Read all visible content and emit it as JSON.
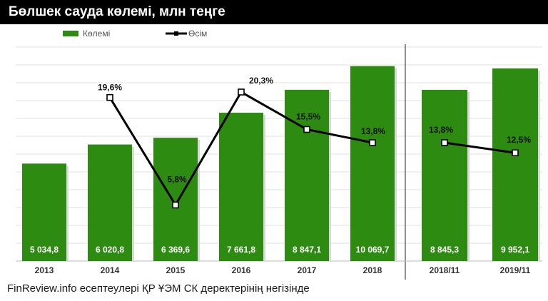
{
  "header": {
    "title": "Бөлшек сауда көлемі, млн теңге"
  },
  "footer": {
    "source": "FinReview.info есептеулері ҚР ҰЭМ СК деректерінің негізінде"
  },
  "colors": {
    "bar": "#2e8b12",
    "line": "#000000",
    "marker_fill": "#ffffff",
    "title_bg": "#000000"
  },
  "chart_data": [
    {
      "type": "bar",
      "title": "Бөлшек сауда көлемі, млн теңге",
      "legend": {
        "position": "top-left",
        "entries": [
          "Көлемі",
          "Өсім"
        ]
      },
      "grid": true,
      "categories": [
        "2013",
        "2014",
        "2015",
        "2016",
        "2017",
        "2018"
      ],
      "series": [
        {
          "name": "Көлемі",
          "type": "bar",
          "values": [
            5034.8,
            6020.8,
            6369.6,
            7661.8,
            8847.1,
            10069.7
          ],
          "labels": [
            "5 034,8",
            "6 020,8",
            "6 369,6",
            "7 661,8",
            "8 847,1",
            "10 069,7"
          ]
        },
        {
          "name": "Өсім",
          "type": "line",
          "values": [
            null,
            19.6,
            5.8,
            20.3,
            15.5,
            13.8
          ],
          "labels": [
            "",
            "19,6%",
            "5,8%",
            "20,3%",
            "15,5%",
            "13,8%"
          ]
        }
      ]
    },
    {
      "type": "bar",
      "grid": true,
      "categories": [
        "2018/11",
        "2019/11"
      ],
      "series": [
        {
          "name": "Көлемі",
          "type": "bar",
          "values": [
            8845.3,
            9952.1
          ],
          "labels": [
            "8 845,3",
            "9 952,1"
          ]
        },
        {
          "name": "Өсім",
          "type": "line",
          "values": [
            13.8,
            12.5
          ],
          "labels": [
            "13,8%",
            "12,5%"
          ]
        }
      ]
    }
  ]
}
